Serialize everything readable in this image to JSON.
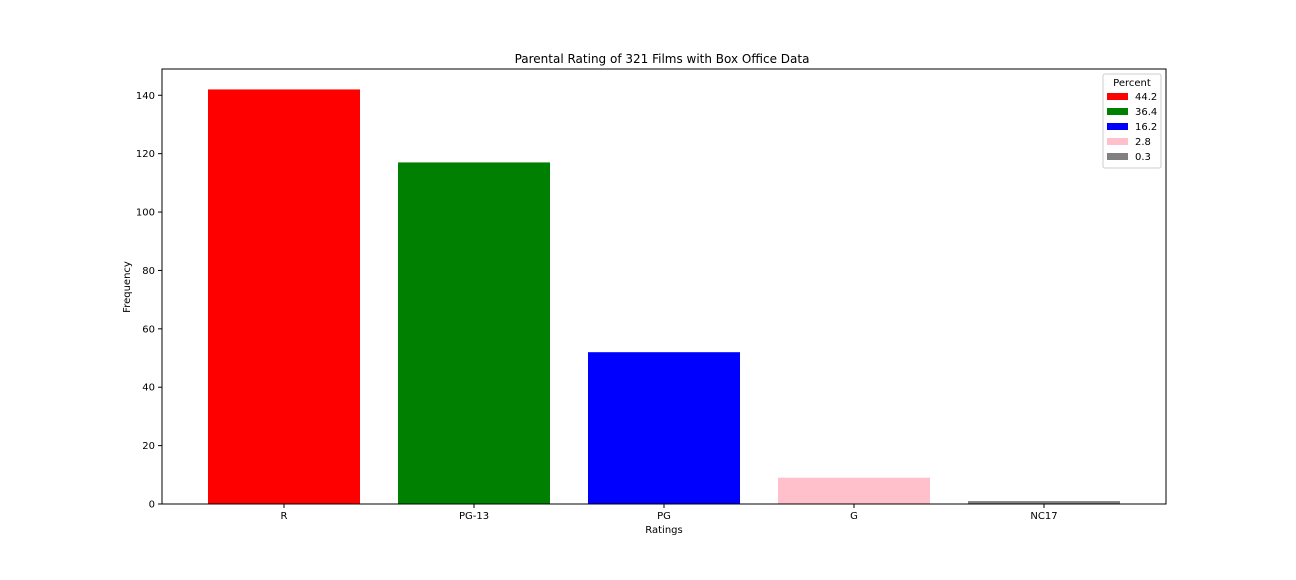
{
  "chart_data": {
    "type": "bar",
    "title": "Parental Rating of 321 Films with Box Office Data",
    "xlabel": "Ratings",
    "ylabel": "Frequency",
    "categories": [
      "R",
      "PG-13",
      "PG",
      "G",
      "NC17"
    ],
    "values": [
      142,
      117,
      52,
      9,
      1
    ],
    "colors": [
      "#ff0000",
      "#008000",
      "#0000ff",
      "#ffc0cb",
      "#808080"
    ],
    "ylim": [
      0,
      149
    ],
    "yticks": [
      0,
      20,
      40,
      60,
      80,
      100,
      120,
      140
    ],
    "grid": false,
    "legend": {
      "title": "Percent",
      "placement": "top-right",
      "entries": [
        "44.2",
        "36.4",
        "16.2",
        "2.8",
        "0.3"
      ]
    }
  }
}
